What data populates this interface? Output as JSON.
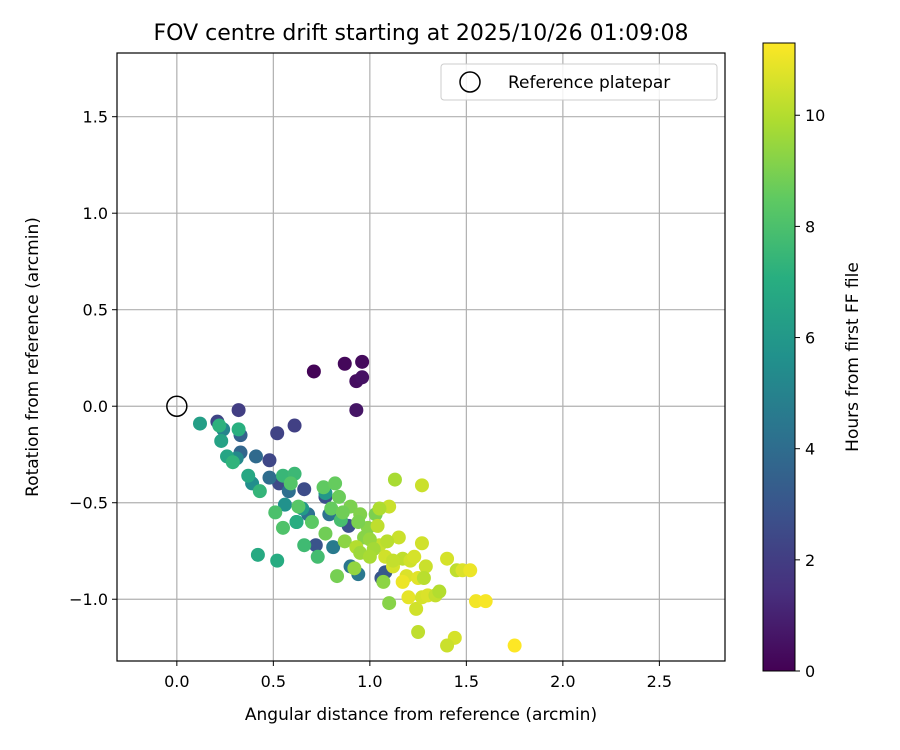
{
  "chart_data": {
    "type": "scatter",
    "title": "FOV centre drift starting at 2025/10/26 01:09:08",
    "xlabel": "Angular distance from reference (arcmin)",
    "ylabel": "Rotation from reference (arcmin)",
    "xlim": [
      -0.31,
      2.84
    ],
    "ylim": [
      -1.32,
      1.83
    ],
    "xticks": [
      0.0,
      0.5,
      1.0,
      1.5,
      2.0,
      2.5
    ],
    "xtick_labels": [
      "0.0",
      "0.5",
      "1.0",
      "1.5",
      "2.0",
      "2.5"
    ],
    "yticks": [
      -1.0,
      -0.5,
      0.0,
      0.5,
      1.0,
      1.5
    ],
    "ytick_labels": [
      "−1.0",
      "−0.5",
      "0.0",
      "0.5",
      "1.0",
      "1.5"
    ],
    "grid": true,
    "legend": {
      "position": "top-right",
      "label": "Reference platepar"
    },
    "reference_point": {
      "x": 0.0,
      "y": 0.0
    },
    "colorbar": {
      "label": "Hours from first FF file",
      "colormap": "viridis",
      "range": [
        0,
        11.3
      ],
      "ticks": [
        0,
        2,
        4,
        6,
        8,
        10
      ],
      "tick_labels": [
        "0",
        "2",
        "4",
        "6",
        "8",
        "10"
      ]
    },
    "points": [
      {
        "x": 0.71,
        "y": 0.18,
        "t": 0.1
      },
      {
        "x": 0.87,
        "y": 0.22,
        "t": 0.2
      },
      {
        "x": 0.96,
        "y": 0.23,
        "t": 0.3
      },
      {
        "x": 0.93,
        "y": 0.13,
        "t": 0.4
      },
      {
        "x": 0.96,
        "y": 0.15,
        "t": 0.5
      },
      {
        "x": 0.93,
        "y": -0.02,
        "t": 0.6
      },
      {
        "x": 0.32,
        "y": -0.02,
        "t": 2.0
      },
      {
        "x": 0.61,
        "y": -0.1,
        "t": 2.1
      },
      {
        "x": 0.52,
        "y": -0.14,
        "t": 2.2
      },
      {
        "x": 0.21,
        "y": -0.08,
        "t": 2.3
      },
      {
        "x": 0.48,
        "y": -0.28,
        "t": 2.4
      },
      {
        "x": 0.53,
        "y": -0.4,
        "t": 2.5
      },
      {
        "x": 0.66,
        "y": -0.43,
        "t": 2.6
      },
      {
        "x": 0.77,
        "y": -0.47,
        "t": 2.7
      },
      {
        "x": 0.89,
        "y": -0.62,
        "t": 2.8
      },
      {
        "x": 0.72,
        "y": -0.72,
        "t": 2.9
      },
      {
        "x": 1.06,
        "y": -0.89,
        "t": 3.0
      },
      {
        "x": 1.08,
        "y": -0.86,
        "t": 3.1
      },
      {
        "x": 0.33,
        "y": -0.15,
        "t": 3.5
      },
      {
        "x": 0.33,
        "y": -0.24,
        "t": 3.7
      },
      {
        "x": 0.41,
        "y": -0.26,
        "t": 3.9
      },
      {
        "x": 0.48,
        "y": -0.37,
        "t": 4.0
      },
      {
        "x": 0.58,
        "y": -0.44,
        "t": 4.1
      },
      {
        "x": 0.68,
        "y": -0.56,
        "t": 4.2
      },
      {
        "x": 0.79,
        "y": -0.56,
        "t": 4.3
      },
      {
        "x": 0.9,
        "y": -0.83,
        "t": 4.4
      },
      {
        "x": 0.94,
        "y": -0.87,
        "t": 4.5
      },
      {
        "x": 0.81,
        "y": -0.73,
        "t": 4.6
      },
      {
        "x": 0.24,
        "y": -0.12,
        "t": 5.1
      },
      {
        "x": 0.31,
        "y": -0.27,
        "t": 5.3
      },
      {
        "x": 0.39,
        "y": -0.4,
        "t": 5.5
      },
      {
        "x": 0.56,
        "y": -0.51,
        "t": 5.7
      },
      {
        "x": 0.62,
        "y": -0.6,
        "t": 5.9
      },
      {
        "x": 0.77,
        "y": -0.45,
        "t": 6.0
      },
      {
        "x": 0.65,
        "y": -0.53,
        "t": 6.1
      },
      {
        "x": 0.12,
        "y": -0.09,
        "t": 6.3
      },
      {
        "x": 0.23,
        "y": -0.18,
        "t": 6.5
      },
      {
        "x": 0.26,
        "y": -0.26,
        "t": 6.6
      },
      {
        "x": 0.37,
        "y": -0.36,
        "t": 6.7
      },
      {
        "x": 0.42,
        "y": -0.77,
        "t": 6.8
      },
      {
        "x": 0.52,
        "y": -0.8,
        "t": 6.9
      },
      {
        "x": 0.62,
        "y": -0.6,
        "t": 7.0
      },
      {
        "x": 0.32,
        "y": -0.12,
        "t": 7.1
      },
      {
        "x": 0.22,
        "y": -0.1,
        "t": 7.2
      },
      {
        "x": 0.29,
        "y": -0.29,
        "t": 7.3
      },
      {
        "x": 0.43,
        "y": -0.44,
        "t": 7.4
      },
      {
        "x": 0.55,
        "y": -0.36,
        "t": 7.5
      },
      {
        "x": 0.61,
        "y": -0.35,
        "t": 7.6
      },
      {
        "x": 0.66,
        "y": -0.72,
        "t": 7.7
      },
      {
        "x": 0.73,
        "y": -0.78,
        "t": 7.8
      },
      {
        "x": 0.85,
        "y": -0.59,
        "t": 7.9
      },
      {
        "x": 0.51,
        "y": -0.55,
        "t": 8.0
      },
      {
        "x": 0.55,
        "y": -0.63,
        "t": 8.1
      },
      {
        "x": 0.59,
        "y": -0.4,
        "t": 8.2
      },
      {
        "x": 0.63,
        "y": -0.52,
        "t": 8.3
      },
      {
        "x": 0.7,
        "y": -0.6,
        "t": 8.4
      },
      {
        "x": 0.76,
        "y": -0.42,
        "t": 8.5
      },
      {
        "x": 0.82,
        "y": -0.4,
        "t": 8.6
      },
      {
        "x": 0.84,
        "y": -0.47,
        "t": 8.7
      },
      {
        "x": 0.77,
        "y": -0.66,
        "t": 8.8
      },
      {
        "x": 0.83,
        "y": -0.88,
        "t": 8.9
      },
      {
        "x": 0.9,
        "y": -0.52,
        "t": 9.0
      },
      {
        "x": 0.95,
        "y": -0.56,
        "t": 9.1
      },
      {
        "x": 0.99,
        "y": -0.63,
        "t": 9.2
      },
      {
        "x": 0.87,
        "y": -0.7,
        "t": 9.3
      },
      {
        "x": 0.92,
        "y": -0.84,
        "t": 9.4
      },
      {
        "x": 0.8,
        "y": -0.53,
        "t": 8.6
      },
      {
        "x": 0.86,
        "y": -0.55,
        "t": 8.8
      },
      {
        "x": 0.94,
        "y": -0.6,
        "t": 9.0
      },
      {
        "x": 0.97,
        "y": -0.68,
        "t": 9.2
      },
      {
        "x": 1.03,
        "y": -0.56,
        "t": 9.0
      },
      {
        "x": 1.07,
        "y": -0.91,
        "t": 9.3
      },
      {
        "x": 1.1,
        "y": -1.02,
        "t": 9.2
      },
      {
        "x": 1.13,
        "y": -0.38,
        "t": 9.8
      },
      {
        "x": 1.1,
        "y": -0.52,
        "t": 10.4
      },
      {
        "x": 1.05,
        "y": -0.53,
        "t": 9.9
      },
      {
        "x": 1.04,
        "y": -0.62,
        "t": 10.2
      },
      {
        "x": 1.05,
        "y": -0.72,
        "t": 10.3
      },
      {
        "x": 1.08,
        "y": -0.78,
        "t": 10.5
      },
      {
        "x": 1.12,
        "y": -0.83,
        "t": 10.6
      },
      {
        "x": 1.15,
        "y": -0.68,
        "t": 10.4
      },
      {
        "x": 1.17,
        "y": -0.79,
        "t": 10.2
      },
      {
        "x": 1.19,
        "y": -0.88,
        "t": 10.7
      },
      {
        "x": 1.21,
        "y": -0.8,
        "t": 10.5
      },
      {
        "x": 1.23,
        "y": -0.78,
        "t": 10.6
      },
      {
        "x": 1.25,
        "y": -0.89,
        "t": 10.8
      },
      {
        "x": 1.17,
        "y": -0.91,
        "t": 11.0
      },
      {
        "x": 1.2,
        "y": -0.99,
        "t": 10.9
      },
      {
        "x": 1.24,
        "y": -1.05,
        "t": 10.5
      },
      {
        "x": 1.27,
        "y": -0.99,
        "t": 10.6
      },
      {
        "x": 1.3,
        "y": -0.98,
        "t": 10.7
      },
      {
        "x": 1.27,
        "y": -0.71,
        "t": 10.5
      },
      {
        "x": 1.29,
        "y": -0.83,
        "t": 10.4
      },
      {
        "x": 1.27,
        "y": -0.41,
        "t": 10.4
      },
      {
        "x": 1.28,
        "y": -0.89,
        "t": 10.1
      },
      {
        "x": 1.34,
        "y": -0.98,
        "t": 10.3
      },
      {
        "x": 1.36,
        "y": -0.96,
        "t": 10.0
      },
      {
        "x": 1.4,
        "y": -0.79,
        "t": 10.6
      },
      {
        "x": 1.45,
        "y": -0.85,
        "t": 10.2
      },
      {
        "x": 1.48,
        "y": -0.85,
        "t": 10.7
      },
      {
        "x": 1.52,
        "y": -0.85,
        "t": 11.0
      },
      {
        "x": 1.55,
        "y": -1.01,
        "t": 11.1
      },
      {
        "x": 1.6,
        "y": -1.01,
        "t": 11.2
      },
      {
        "x": 1.44,
        "y": -1.2,
        "t": 10.6
      },
      {
        "x": 1.4,
        "y": -1.24,
        "t": 10.4
      },
      {
        "x": 1.25,
        "y": -1.17,
        "t": 10.2
      },
      {
        "x": 1.75,
        "y": -1.24,
        "t": 11.3
      },
      {
        "x": 1.0,
        "y": -0.69,
        "t": 9.5
      },
      {
        "x": 1.02,
        "y": -0.74,
        "t": 9.7
      },
      {
        "x": 0.93,
        "y": -0.73,
        "t": 10.0
      },
      {
        "x": 0.95,
        "y": -0.76,
        "t": 9.6
      },
      {
        "x": 1.0,
        "y": -0.78,
        "t": 9.8
      },
      {
        "x": 1.09,
        "y": -0.7,
        "t": 10.1
      },
      {
        "x": 1.12,
        "y": -0.8,
        "t": 10.3
      }
    ]
  }
}
